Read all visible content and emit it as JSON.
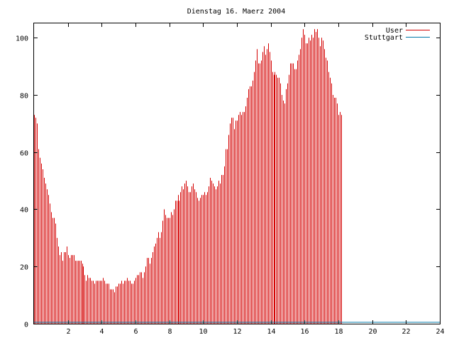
{
  "chart_data": {
    "type": "bar",
    "title": "Dienstag 16. Maerz 2004",
    "xlabel": "",
    "ylabel": "",
    "xlim": [
      0,
      24
    ],
    "ylim": [
      0,
      105
    ],
    "x_ticks": [
      2,
      4,
      6,
      8,
      10,
      12,
      14,
      16,
      18,
      20,
      22,
      24
    ],
    "x_tick_labels": [
      "2",
      "4",
      "6",
      "8",
      "10",
      "12",
      "14",
      "16",
      "18",
      "20",
      "22",
      "24"
    ],
    "y_ticks": [
      0,
      20,
      40,
      60,
      80,
      100
    ],
    "y_tick_labels": [
      "0",
      "20",
      "40",
      "60",
      "80",
      "100"
    ],
    "grid": false,
    "legend_position": "top-right",
    "series": [
      {
        "name": "User",
        "color": "#d40000",
        "step_hours": 0.0833,
        "values": [
          73,
          72,
          70,
          61,
          58,
          56,
          54,
          51,
          49,
          47,
          45,
          42,
          39,
          37,
          37,
          35,
          30,
          27,
          24,
          25,
          22,
          25,
          25,
          27,
          24,
          23,
          24,
          24,
          24,
          22,
          22,
          22,
          22,
          22,
          21,
          20,
          17,
          15,
          17,
          16,
          16,
          15,
          15,
          14,
          15,
          15,
          15,
          15,
          15,
          16,
          15,
          14,
          14,
          14,
          12,
          12,
          12,
          11,
          13,
          13,
          14,
          14,
          15,
          14,
          15,
          15,
          16,
          15,
          15,
          14,
          14,
          15,
          16,
          17,
          17,
          18,
          18,
          16,
          18,
          20,
          23,
          23,
          21,
          23,
          25,
          27,
          28,
          30,
          32,
          30,
          32,
          36,
          40,
          38,
          37,
          37,
          37,
          39,
          38,
          40,
          43,
          43,
          45,
          43,
          46,
          48,
          47,
          49,
          50,
          48,
          46,
          46,
          48,
          49,
          47,
          46,
          44,
          43,
          44,
          45,
          45,
          46,
          45,
          46,
          48,
          51,
          50,
          49,
          48,
          47,
          48,
          50,
          49,
          52,
          52,
          55,
          61,
          61,
          66,
          70,
          72,
          72,
          68,
          71,
          71,
          73,
          74,
          73,
          74,
          74,
          76,
          79,
          82,
          83,
          83,
          85,
          88,
          92,
          96,
          91,
          91,
          92,
          95,
          97,
          94,
          96,
          98,
          95,
          92,
          88,
          87,
          88,
          87,
          86,
          86,
          84,
          80,
          78,
          77,
          82,
          84,
          87,
          91,
          91,
          91,
          89,
          89,
          92,
          94,
          96,
          100,
          103,
          101,
          98,
          98,
          100,
          99,
          101,
          100,
          103,
          102,
          103,
          100,
          97,
          100,
          99,
          96,
          93,
          92,
          88,
          86,
          84,
          80,
          79,
          79,
          77,
          73,
          74,
          73
        ]
      },
      {
        "name": "Stuttgart",
        "color": "#0078a8",
        "values": [
          0.5
        ]
      }
    ]
  }
}
